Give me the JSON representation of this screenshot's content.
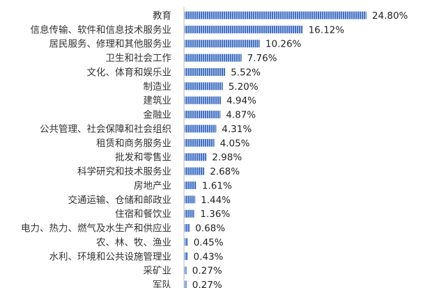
{
  "chart_data": {
    "type": "bar",
    "orientation": "horizontal",
    "title": "",
    "xlabel": "",
    "ylabel": "",
    "xlim": [
      0,
      25
    ],
    "grid": false,
    "legend": "none",
    "bar_color": "#4472c4",
    "categories": [
      "教育",
      "信息传输、软件和信息技术服务业",
      "居民服务、修理和其他服务业",
      "卫生和社会工作",
      "文化、体育和娱乐业",
      "制造业",
      "建筑业",
      "金融业",
      "公共管理、社会保障和社会组织",
      "租赁和商务服务业",
      "批发和零售业",
      "科学研究和技术服务业",
      "房地产业",
      "交通运输、仓储和邮政业",
      "住宿和餐饮业",
      "电力、热力、燃气及水生产和供应业",
      "农、林、牧、渔业",
      "水利、环境和公共设施管理业",
      "采矿业",
      "军队"
    ],
    "values": [
      24.8,
      16.12,
      10.26,
      7.76,
      5.52,
      5.2,
      4.94,
      4.87,
      4.31,
      4.05,
      2.98,
      2.68,
      1.61,
      1.44,
      1.36,
      0.68,
      0.45,
      0.43,
      0.27,
      0.27
    ],
    "value_labels": [
      "24.80%",
      "16.12%",
      "10.26%",
      "7.76%",
      "5.52%",
      "5.20%",
      "4.94%",
      "4.87%",
      "4.31%",
      "4.05%",
      "2.98%",
      "2.68%",
      "1.61%",
      "1.44%",
      "1.36%",
      "0.68%",
      "0.45%",
      "0.43%",
      "0.27%",
      "0.27%"
    ]
  }
}
